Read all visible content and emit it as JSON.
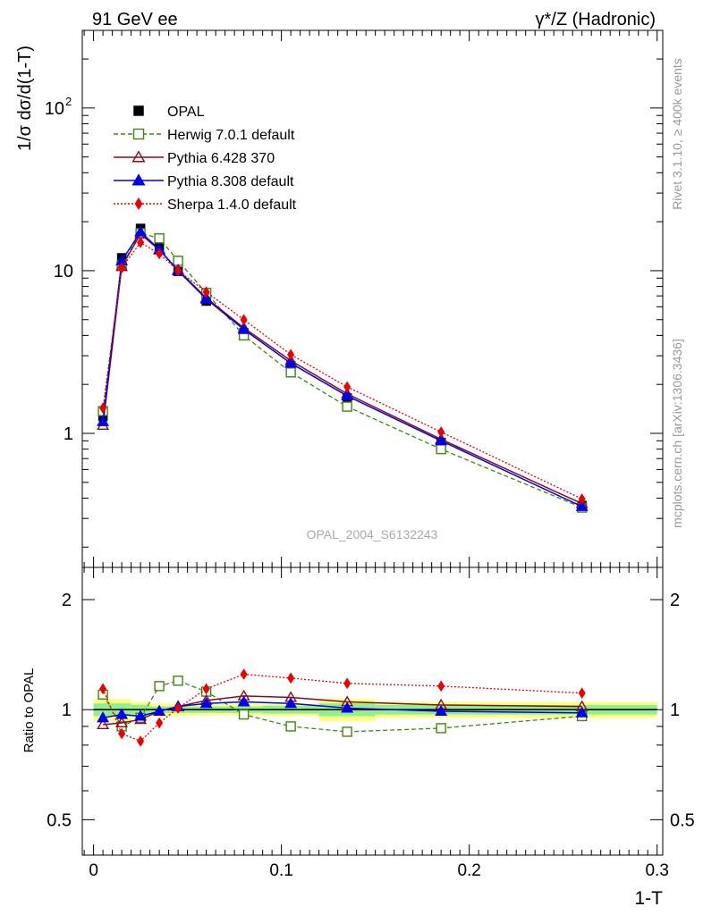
{
  "header": {
    "left": "91 GeV ee",
    "right": "γ*/Z (Hadronic)"
  },
  "side_text": {
    "rivet": "Rivet 3.1.10, ≥ 400k events",
    "mcplots": "mcplots.cern.ch [arXiv:1306.3436]"
  },
  "watermark": "OPAL_2004_S6132243",
  "colors": {
    "data": "#000000",
    "herwig": "#3a8a0f",
    "pythia6": "#8b0a1a",
    "pythia8": "#0000ee",
    "sherpa": "#ee0000",
    "band_inner": "#8ef08e",
    "band_outer": "#ffff80"
  },
  "chart_data": [
    {
      "type": "line",
      "panel": "main",
      "log_y": true,
      "xlim": [
        0,
        0.3
      ],
      "ylim": [
        0.15,
        300
      ],
      "ylabel": "1/σ dσ/d(1-T)",
      "y_tick_labels": [
        {
          "value": 1,
          "label": "1"
        },
        {
          "value": 10,
          "label": "10"
        },
        {
          "value": 100,
          "label": "10",
          "exponent": "2"
        }
      ],
      "x": [
        0.005,
        0.015,
        0.025,
        0.035,
        0.045,
        0.06,
        0.08,
        0.105,
        0.135,
        0.185,
        0.26
      ],
      "series": [
        {
          "key": "data",
          "name": "OPAL",
          "marker": "filled-square",
          "line": "none",
          "values": [
            1.27,
            12.0,
            18.2,
            13.8,
            9.9,
            6.5,
            4.15,
            2.6,
            1.65,
            0.88,
            0.36
          ]
        },
        {
          "key": "herwig",
          "name": "Herwig 7.0.1 default",
          "marker": "open-square",
          "line": "dashed",
          "values": [
            1.37,
            10.8,
            17.0,
            15.8,
            11.5,
            7.3,
            4.0,
            2.37,
            1.46,
            0.8,
            0.35
          ]
        },
        {
          "key": "pythia6",
          "name": "Pythia 6.428 370",
          "marker": "open-triangle",
          "line": "solid",
          "values": [
            1.12,
            10.6,
            16.8,
            13.4,
            10.1,
            6.8,
            4.45,
            2.8,
            1.75,
            0.92,
            0.37
          ]
        },
        {
          "key": "pythia8",
          "name": "Pythia 8.308 default",
          "marker": "filled-triangle",
          "line": "solid",
          "values": [
            1.18,
            11.5,
            17.3,
            13.5,
            10.0,
            6.7,
            4.35,
            2.7,
            1.7,
            0.9,
            0.355
          ]
        },
        {
          "key": "sherpa",
          "name": "Sherpa 1.4.0 default",
          "marker": "filled-diamond",
          "line": "dotted",
          "values": [
            1.43,
            10.4,
            14.9,
            12.7,
            10.0,
            7.4,
            5.0,
            3.05,
            1.93,
            1.02,
            0.395
          ]
        }
      ],
      "legend": [
        "OPAL",
        "Herwig 7.0.1 default",
        "Pythia 6.428 370",
        "Pythia 8.308 default",
        "Sherpa 1.4.0 default"
      ],
      "legend_position": "top-left"
    },
    {
      "type": "line",
      "panel": "ratio",
      "log_y": true,
      "xlim": [
        -0.006,
        0.303
      ],
      "ylim": [
        0.4,
        2.45
      ],
      "ylabel": "Ratio to OPAL",
      "xlabel": "1-T",
      "x_tick_labels": [
        {
          "value": 0,
          "label": "0"
        },
        {
          "value": 0.1,
          "label": "0.1"
        },
        {
          "value": 0.2,
          "label": "0.2"
        },
        {
          "value": 0.3,
          "label": "0.3"
        }
      ],
      "y_tick_labels": [
        {
          "value": 0.5,
          "label": "0.5"
        },
        {
          "value": 1,
          "label": "1"
        },
        {
          "value": 2,
          "label": "2"
        }
      ],
      "reference_line": 1,
      "uncertainty_bands": [
        {
          "x0": 0.0,
          "x1": 0.02,
          "inner": 0.04,
          "outer": 0.07
        },
        {
          "x0": 0.02,
          "x1": 0.03,
          "inner": 0.03,
          "outer": 0.05
        },
        {
          "x0": 0.03,
          "x1": 0.05,
          "inner": 0.02,
          "outer": 0.04
        },
        {
          "x0": 0.05,
          "x1": 0.07,
          "inner": 0.02,
          "outer": 0.035
        },
        {
          "x0": 0.07,
          "x1": 0.09,
          "inner": 0.02,
          "outer": 0.035
        },
        {
          "x0": 0.09,
          "x1": 0.12,
          "inner": 0.025,
          "outer": 0.04
        },
        {
          "x0": 0.12,
          "x1": 0.15,
          "inner": 0.04,
          "outer": 0.07
        },
        {
          "x0": 0.15,
          "x1": 0.22,
          "inner": 0.03,
          "outer": 0.05
        },
        {
          "x0": 0.22,
          "x1": 0.3,
          "inner": 0.03,
          "outer": 0.05
        }
      ],
      "x": [
        0.005,
        0.015,
        0.025,
        0.035,
        0.045,
        0.06,
        0.08,
        0.105,
        0.135,
        0.185,
        0.26
      ],
      "series": [
        {
          "key": "herwig",
          "name": "Herwig 7.0.1 default",
          "marker": "open-square",
          "line": "dashed",
          "values": [
            1.1,
            0.9,
            0.95,
            1.16,
            1.2,
            1.12,
            0.97,
            0.9,
            0.87,
            0.89,
            0.96
          ]
        },
        {
          "key": "pythia6",
          "name": "Pythia 6.428 370",
          "marker": "open-triangle",
          "line": "solid",
          "values": [
            0.91,
            0.92,
            0.94,
            0.99,
            1.02,
            1.06,
            1.09,
            1.08,
            1.05,
            1.03,
            1.02
          ]
        },
        {
          "key": "pythia8",
          "name": "Pythia 8.308 default",
          "marker": "filled-triangle",
          "line": "solid",
          "values": [
            0.95,
            0.97,
            0.96,
            0.99,
            1.02,
            1.04,
            1.05,
            1.04,
            1.01,
            0.99,
            0.98
          ]
        },
        {
          "key": "sherpa",
          "name": "Sherpa 1.4.0 default",
          "marker": "filled-diamond",
          "line": "dotted",
          "values": [
            1.14,
            0.86,
            0.82,
            0.92,
            1.01,
            1.14,
            1.25,
            1.22,
            1.18,
            1.16,
            1.11
          ]
        }
      ]
    }
  ]
}
